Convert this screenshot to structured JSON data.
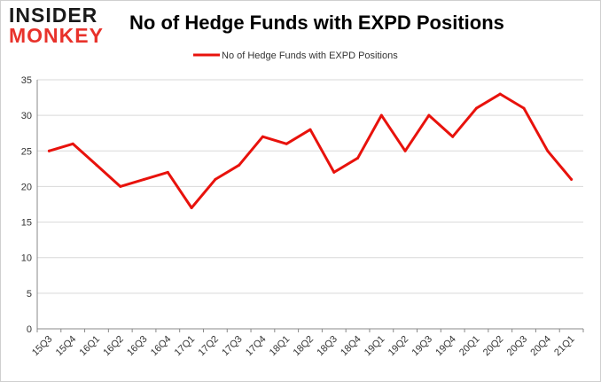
{
  "logo": {
    "line1": "INSIDER",
    "line2": "MONKEY"
  },
  "colors": {
    "series": "#e8120c",
    "grid": "#d9d9d9",
    "axis": "#888888",
    "logo_accent": "#e8322b"
  },
  "chart_data": {
    "type": "line",
    "title": "No of Hedge Funds with EXPD Positions",
    "xlabel": "",
    "ylabel": "",
    "categories": [
      "15Q3",
      "15Q4",
      "16Q1",
      "16Q2",
      "16Q3",
      "16Q4",
      "17Q1",
      "17Q2",
      "17Q3",
      "17Q4",
      "18Q1",
      "18Q2",
      "18Q3",
      "18Q4",
      "19Q1",
      "19Q2",
      "19Q3",
      "19Q4",
      "20Q1",
      "20Q2",
      "20Q3",
      "20Q4",
      "21Q1"
    ],
    "series": [
      {
        "name": "No of Hedge Funds with EXPD Positions",
        "values": [
          25,
          26,
          23,
          20,
          21,
          22,
          17,
          21,
          23,
          27,
          26,
          28,
          22,
          24,
          30,
          25,
          30,
          27,
          31,
          33,
          31,
          25,
          21
        ]
      }
    ],
    "ylim": [
      0,
      35
    ],
    "yticks": [
      0,
      5,
      10,
      15,
      20,
      25,
      30,
      35
    ],
    "grid": true,
    "legend": "top-center"
  }
}
